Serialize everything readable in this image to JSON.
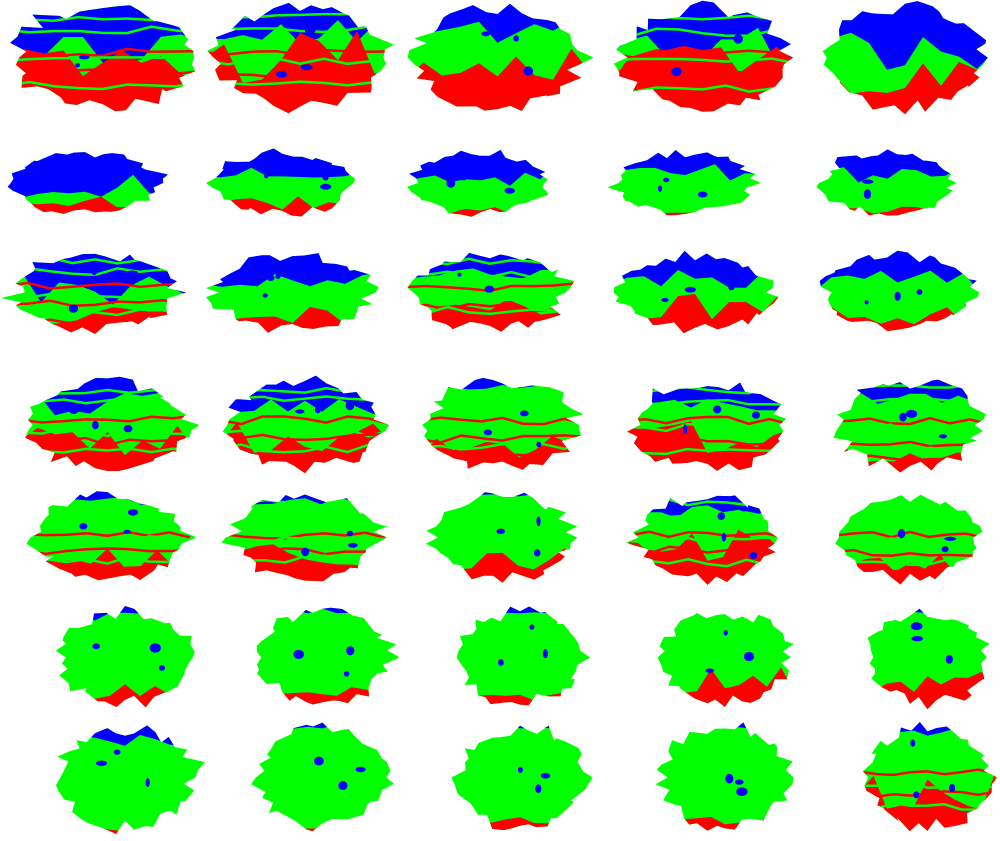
{
  "title": "",
  "colors": {
    "blue": "#0000ff",
    "green": "#00ff00",
    "red": "#ff0000",
    "background": "#ffffff"
  },
  "grid": {
    "rows": 7,
    "cols": 5
  },
  "cells": [
    {
      "mix": {
        "blue": 0.35,
        "green": 0.25,
        "red": 0.4
      },
      "stripes": true
    },
    {
      "mix": {
        "blue": 0.25,
        "green": 0.3,
        "red": 0.45
      },
      "stripes": true
    },
    {
      "mix": {
        "blue": 0.25,
        "green": 0.4,
        "red": 0.35
      },
      "stripes": false
    },
    {
      "mix": {
        "blue": 0.35,
        "green": 0.25,
        "red": 0.4
      },
      "stripes": true
    },
    {
      "mix": {
        "blue": 0.4,
        "green": 0.3,
        "red": 0.3
      },
      "stripes": false
    },
    {
      "mix": {
        "blue": 0.45,
        "green": 0.35,
        "red": 0.2
      },
      "stripes": false
    },
    {
      "mix": {
        "blue": 0.3,
        "green": 0.5,
        "red": 0.2
      },
      "stripes": false
    },
    {
      "mix": {
        "blue": 0.35,
        "green": 0.55,
        "red": 0.1
      },
      "stripes": false
    },
    {
      "mix": {
        "blue": 0.3,
        "green": 0.65,
        "red": 0.05
      },
      "stripes": false
    },
    {
      "mix": {
        "blue": 0.35,
        "green": 0.55,
        "red": 0.1
      },
      "stripes": false
    },
    {
      "mix": {
        "blue": 0.4,
        "green": 0.4,
        "red": 0.2
      },
      "stripes": true
    },
    {
      "mix": {
        "blue": 0.3,
        "green": 0.5,
        "red": 0.2
      },
      "stripes": false
    },
    {
      "mix": {
        "blue": 0.25,
        "green": 0.5,
        "red": 0.25
      },
      "stripes": true
    },
    {
      "mix": {
        "blue": 0.3,
        "green": 0.4,
        "red": 0.3
      },
      "stripes": false
    },
    {
      "mix": {
        "blue": 0.35,
        "green": 0.45,
        "red": 0.2
      },
      "stripes": false
    },
    {
      "mix": {
        "blue": 0.25,
        "green": 0.45,
        "red": 0.3
      },
      "stripes": true
    },
    {
      "mix": {
        "blue": 0.25,
        "green": 0.4,
        "red": 0.35
      },
      "stripes": true
    },
    {
      "mix": {
        "blue": 0.1,
        "green": 0.65,
        "red": 0.25
      },
      "stripes": true
    },
    {
      "mix": {
        "blue": 0.25,
        "green": 0.4,
        "red": 0.35
      },
      "stripes": true
    },
    {
      "mix": {
        "blue": 0.2,
        "green": 0.6,
        "red": 0.2
      },
      "stripes": true
    },
    {
      "mix": {
        "blue": 0.1,
        "green": 0.65,
        "red": 0.25
      },
      "stripes": true
    },
    {
      "mix": {
        "blue": 0.1,
        "green": 0.6,
        "red": 0.3
      },
      "stripes": true
    },
    {
      "mix": {
        "blue": 0.05,
        "green": 0.7,
        "red": 0.25
      },
      "stripes": false
    },
    {
      "mix": {
        "blue": 0.2,
        "green": 0.45,
        "red": 0.35
      },
      "stripes": true
    },
    {
      "mix": {
        "blue": 0.05,
        "green": 0.75,
        "red": 0.2
      },
      "stripes": true
    },
    {
      "mix": {
        "blue": 0.1,
        "green": 0.75,
        "red": 0.15
      },
      "stripes": false
    },
    {
      "mix": {
        "blue": 0.05,
        "green": 0.8,
        "red": 0.15
      },
      "stripes": false
    },
    {
      "mix": {
        "blue": 0.05,
        "green": 0.85,
        "red": 0.1
      },
      "stripes": false
    },
    {
      "mix": {
        "blue": 0.05,
        "green": 0.7,
        "red": 0.25
      },
      "stripes": false
    },
    {
      "mix": {
        "blue": 0.05,
        "green": 0.7,
        "red": 0.25
      },
      "stripes": false
    },
    {
      "mix": {
        "blue": 0.15,
        "green": 0.8,
        "red": 0.05
      },
      "stripes": false
    },
    {
      "mix": {
        "blue": 0.05,
        "green": 0.9,
        "red": 0.05
      },
      "stripes": false
    },
    {
      "mix": {
        "blue": 0.05,
        "green": 0.85,
        "red": 0.1
      },
      "stripes": false
    },
    {
      "mix": {
        "blue": 0.05,
        "green": 0.85,
        "red": 0.1
      },
      "stripes": false
    },
    {
      "mix": {
        "blue": 0.1,
        "green": 0.55,
        "red": 0.35
      },
      "stripes": true
    }
  ]
}
